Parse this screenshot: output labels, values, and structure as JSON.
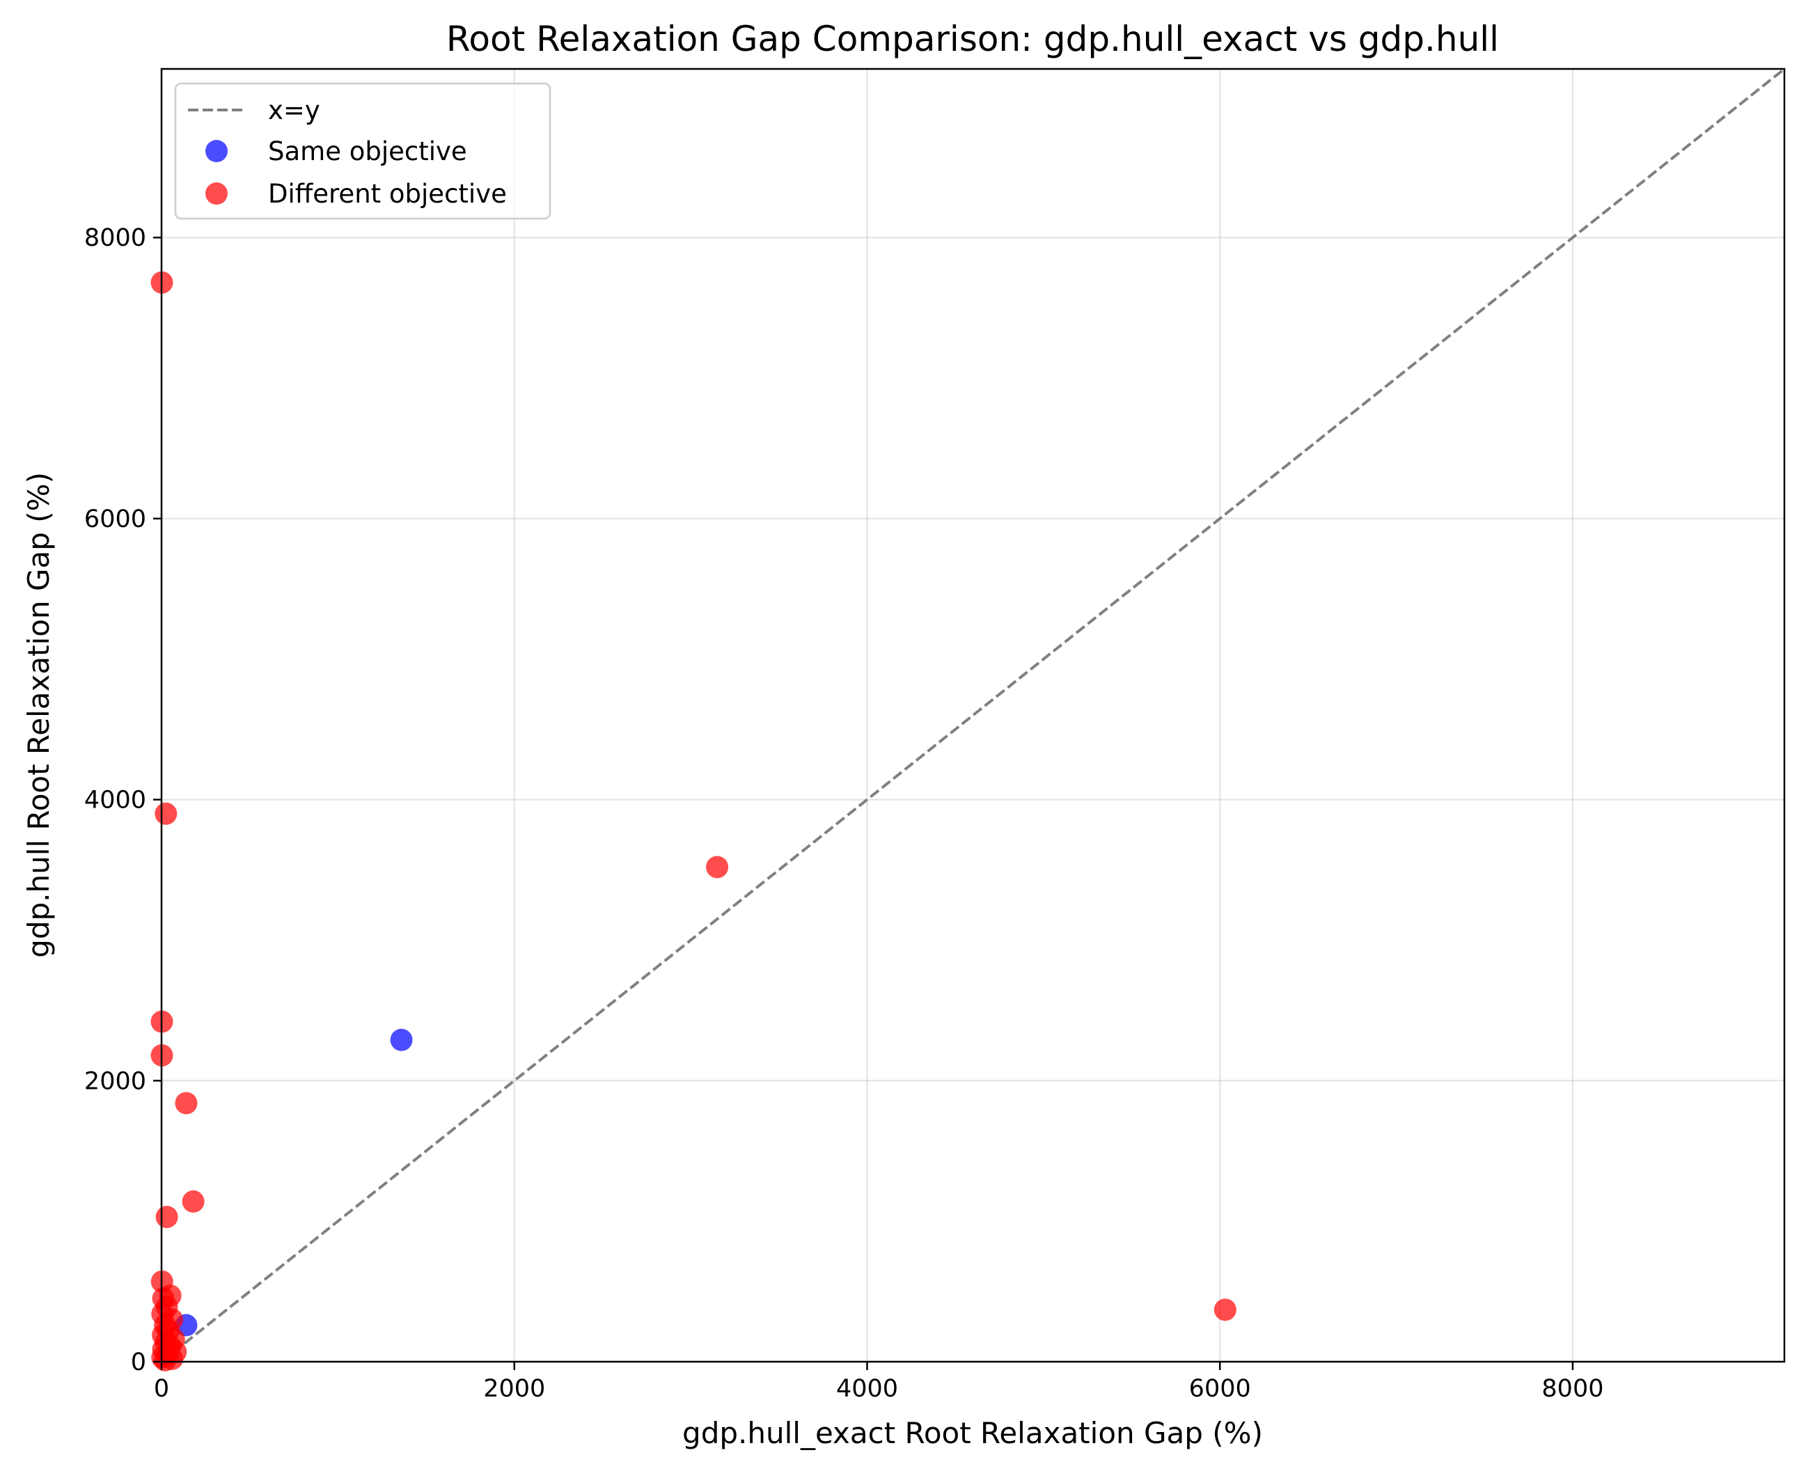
{
  "chart_data": {
    "type": "scatter",
    "title": "Root Relaxation Gap Comparison: gdp.hull_exact vs gdp.hull",
    "xlabel": "gdp.hull_exact Root Relaxation Gap (%)",
    "ylabel": "gdp.hull Root Relaxation Gap (%)",
    "xlim": [
      0,
      9200
    ],
    "ylim": [
      0,
      9200
    ],
    "xticks": [
      0,
      2000,
      4000,
      6000,
      8000
    ],
    "yticks": [
      0,
      2000,
      4000,
      6000,
      8000
    ],
    "xtick_labels": [
      "0",
      "2000",
      "4000",
      "6000",
      "8000"
    ],
    "ytick_labels": [
      "0",
      "2000",
      "4000",
      "6000",
      "8000"
    ],
    "grid": true,
    "legend_position": "top-left",
    "reference_line": {
      "label": "x=y",
      "color": "#808080",
      "style": "dashed"
    },
    "series": [
      {
        "name": "Same objective",
        "color": "#0000ff",
        "points": [
          {
            "x": 1360,
            "y": 2290
          },
          {
            "x": 140,
            "y": 260
          }
        ]
      },
      {
        "name": "Different objective",
        "color": "#ff0000",
        "points": [
          {
            "x": 2,
            "y": 7680
          },
          {
            "x": 25,
            "y": 3900
          },
          {
            "x": 3150,
            "y": 3520
          },
          {
            "x": 2,
            "y": 2420
          },
          {
            "x": 2,
            "y": 2180
          },
          {
            "x": 140,
            "y": 1840
          },
          {
            "x": 180,
            "y": 1140
          },
          {
            "x": 30,
            "y": 1030
          },
          {
            "x": 6030,
            "y": 370
          },
          {
            "x": 3,
            "y": 570
          },
          {
            "x": 50,
            "y": 470
          },
          {
            "x": 10,
            "y": 450
          },
          {
            "x": 30,
            "y": 390
          },
          {
            "x": 5,
            "y": 340
          },
          {
            "x": 60,
            "y": 300
          },
          {
            "x": 20,
            "y": 260
          },
          {
            "x": 40,
            "y": 220
          },
          {
            "x": 8,
            "y": 190
          },
          {
            "x": 70,
            "y": 160
          },
          {
            "x": 25,
            "y": 140
          },
          {
            "x": 50,
            "y": 110
          },
          {
            "x": 10,
            "y": 90
          },
          {
            "x": 80,
            "y": 70
          },
          {
            "x": 35,
            "y": 50
          },
          {
            "x": 5,
            "y": 30
          },
          {
            "x": 60,
            "y": 20
          },
          {
            "x": 20,
            "y": 10
          }
        ]
      }
    ]
  }
}
